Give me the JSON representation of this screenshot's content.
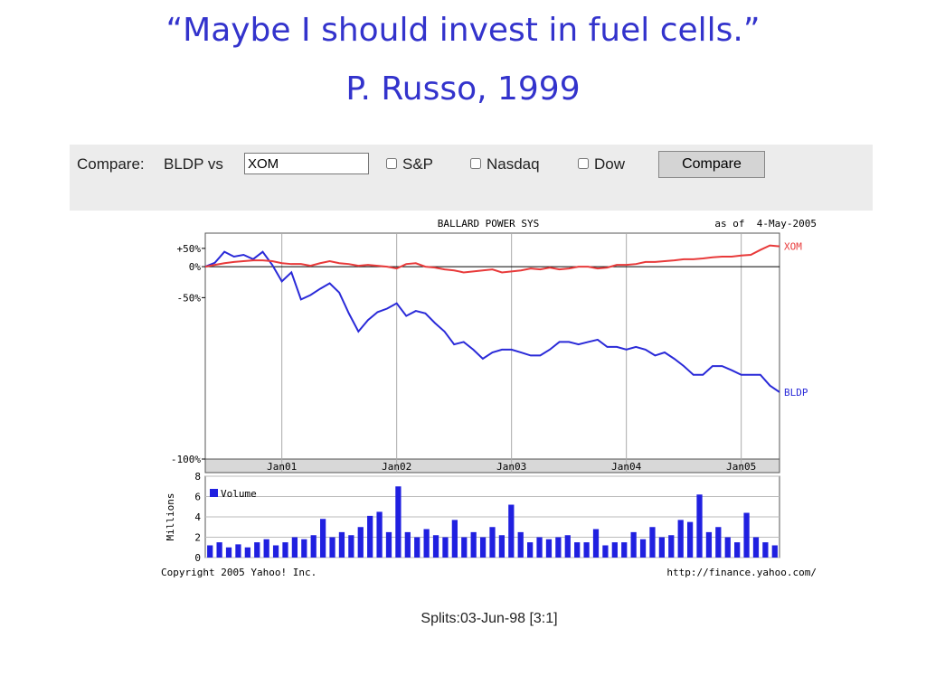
{
  "slide_title": [
    "“Maybe I should invest in fuel cells.”",
    "P. Russo, 1999"
  ],
  "toolbar": {
    "label": "Compare:",
    "symbol": "BLDP vs",
    "input": "XOM",
    "checkboxes": [
      "S&P",
      "Nasdaq",
      "Dow"
    ],
    "button": "Compare"
  },
  "chart_data": [
    {
      "type": "line",
      "title": "BALLARD POWER SYS",
      "annotation": "as of  4-May-2005",
      "yscale": "log",
      "categories": [
        null,
        null,
        null,
        null,
        null,
        null,
        null,
        null,
        "Jan01",
        null,
        null,
        null,
        null,
        null,
        null,
        null,
        null,
        null,
        null,
        null,
        "Jan02",
        null,
        null,
        null,
        null,
        null,
        null,
        null,
        null,
        null,
        null,
        null,
        "Jan03",
        null,
        null,
        null,
        null,
        null,
        null,
        null,
        null,
        null,
        null,
        null,
        "Jan04",
        null,
        null,
        null,
        null,
        null,
        null,
        null,
        null,
        null,
        null,
        null,
        "Jan05",
        null,
        null,
        null,
        null
      ],
      "series": [
        {
          "name": "BLDP",
          "color": "#2a2ad8",
          "values": [
            0,
            9,
            39,
            25,
            30,
            18,
            39,
            4,
            -28,
            -12,
            -52,
            -47,
            -39,
            -31,
            -44,
            -65,
            -77,
            -70,
            -64,
            -61,
            -56,
            -67,
            -63,
            -65,
            -72,
            -77,
            -83,
            -82,
            -85,
            -88,
            -86,
            -85,
            -85,
            -86,
            -87,
            -87,
            -85,
            -82,
            -82,
            -83,
            -82,
            -81,
            -84,
            -84,
            -85,
            -84,
            -85,
            -87,
            -86,
            -88,
            -90,
            -92,
            -92,
            -90,
            -90,
            -91,
            -92,
            -92,
            -92,
            -94,
            -95
          ]
        },
        {
          "name": "XOM",
          "color": "#e83a3a",
          "values": [
            0,
            4,
            8,
            11,
            13,
            15,
            15,
            13,
            8,
            6,
            6,
            2,
            8,
            13,
            8,
            6,
            2,
            4,
            2,
            0,
            -4,
            6,
            8,
            0,
            -2,
            -6,
            -8,
            -12,
            -10,
            -8,
            -6,
            -12,
            -10,
            -8,
            -4,
            -6,
            -2,
            -6,
            -4,
            0,
            0,
            -4,
            -2,
            4,
            4,
            6,
            11,
            11,
            13,
            15,
            18,
            18,
            20,
            23,
            25,
            25,
            28,
            30,
            45,
            60,
            57
          ]
        }
      ],
      "ylim": [
        -100,
        110
      ],
      "yticks": [
        {
          "value": 50,
          "label": "+50%"
        },
        {
          "value": 0,
          "label": "0%"
        },
        {
          "value": -50,
          "label": "-50%"
        },
        {
          "value": -100,
          "label": "-100%"
        }
      ],
      "grid": true
    },
    {
      "type": "bar",
      "ylabel": "Millions",
      "legend": "Volume",
      "color": "#2020e0",
      "values": [
        1.2,
        1.5,
        1.0,
        1.3,
        1.0,
        1.5,
        1.8,
        1.2,
        1.5,
        2.0,
        1.8,
        2.2,
        3.8,
        2.0,
        2.5,
        2.2,
        3.0,
        4.1,
        4.5,
        2.5,
        7.0,
        2.5,
        2.0,
        2.8,
        2.2,
        2.0,
        3.7,
        2.0,
        2.5,
        2.0,
        3.0,
        2.2,
        5.2,
        2.5,
        1.5,
        2.0,
        1.8,
        2.0,
        2.2,
        1.5,
        1.5,
        2.8,
        1.2,
        1.5,
        1.5,
        2.5,
        1.8,
        3.0,
        2.0,
        2.2,
        3.7,
        3.5,
        6.2,
        2.5,
        3.0,
        2.0,
        1.5,
        4.4,
        2.0,
        1.5,
        1.2
      ],
      "ylim": [
        0,
        8
      ],
      "yticks": [
        0,
        2,
        4,
        6,
        8
      ],
      "grid": true
    }
  ],
  "footer": {
    "copyright": "Copyright 2005 Yahoo! Inc.",
    "url": "http://finance.yahoo.com/",
    "splits": "Splits:03-Jun-98 [3:1]"
  }
}
